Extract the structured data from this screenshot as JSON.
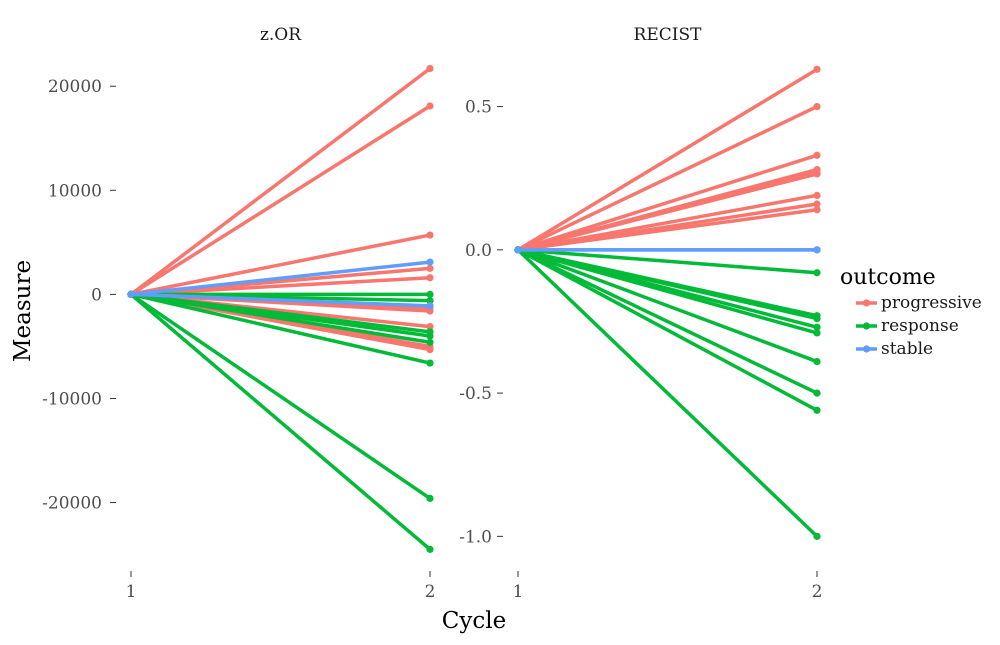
{
  "chart_data": {
    "type": "line",
    "xlabel": "Cycle",
    "ylabel": "Measure",
    "x_categories": [
      "1",
      "2"
    ],
    "legend": {
      "title": "outcome",
      "position": "right",
      "entries": [
        {
          "name": "progressive",
          "color": "#F8766D"
        },
        {
          "name": "response",
          "color": "#00BA38"
        },
        {
          "name": "stable",
          "color": "#619CFF"
        }
      ]
    },
    "panels": [
      {
        "title": "z.OR",
        "ylim": [
          -26000,
          23000
        ],
        "yticks": [
          20000,
          10000,
          0,
          -10000,
          -20000
        ],
        "ytick_labels": [
          "20000",
          "10000",
          "0",
          "-10000",
          "-20000"
        ],
        "series": [
          {
            "outcome": "progressive",
            "values": [
              0,
              21700
            ]
          },
          {
            "outcome": "progressive",
            "values": [
              0,
              18100
            ]
          },
          {
            "outcome": "progressive",
            "values": [
              0,
              5700
            ]
          },
          {
            "outcome": "progressive",
            "values": [
              0,
              2500
            ]
          },
          {
            "outcome": "progressive",
            "values": [
              0,
              1600
            ]
          },
          {
            "outcome": "progressive",
            "values": [
              0,
              -1300
            ]
          },
          {
            "outcome": "progressive",
            "values": [
              0,
              -1600
            ]
          },
          {
            "outcome": "progressive",
            "values": [
              0,
              -3100
            ]
          },
          {
            "outcome": "progressive",
            "values": [
              0,
              -5000
            ]
          },
          {
            "outcome": "progressive",
            "values": [
              0,
              -5300
            ]
          },
          {
            "outcome": "stable",
            "values": [
              0,
              3100
            ]
          },
          {
            "outcome": "stable",
            "values": [
              0,
              -1100
            ]
          },
          {
            "outcome": "response",
            "values": [
              0,
              0
            ]
          },
          {
            "outcome": "response",
            "values": [
              0,
              -600
            ]
          },
          {
            "outcome": "response",
            "values": [
              0,
              -3600
            ]
          },
          {
            "outcome": "response",
            "values": [
              0,
              -4000
            ]
          },
          {
            "outcome": "response",
            "values": [
              0,
              -4600
            ]
          },
          {
            "outcome": "response",
            "values": [
              0,
              -6600
            ]
          },
          {
            "outcome": "response",
            "values": [
              0,
              -19600
            ]
          },
          {
            "outcome": "response",
            "values": [
              0,
              -24500
            ]
          }
        ]
      },
      {
        "title": "RECIST",
        "ylim": [
          -1.1,
          0.68
        ],
        "yticks": [
          0.5,
          0.0,
          -0.5,
          -1.0
        ],
        "ytick_labels": [
          "0.5",
          "0.0",
          "-0.5",
          "-1.0"
        ],
        "series": [
          {
            "outcome": "progressive",
            "values": [
              0,
              0.63
            ]
          },
          {
            "outcome": "progressive",
            "values": [
              0,
              0.5
            ]
          },
          {
            "outcome": "progressive",
            "values": [
              0,
              0.33
            ]
          },
          {
            "outcome": "progressive",
            "values": [
              0,
              0.28
            ]
          },
          {
            "outcome": "progressive",
            "values": [
              0,
              0.27
            ]
          },
          {
            "outcome": "progressive",
            "values": [
              0,
              0.265
            ]
          },
          {
            "outcome": "progressive",
            "values": [
              0,
              0.19
            ]
          },
          {
            "outcome": "progressive",
            "values": [
              0,
              0.16
            ]
          },
          {
            "outcome": "progressive",
            "values": [
              0,
              0.14
            ]
          },
          {
            "outcome": "stable",
            "values": [
              0,
              0.0
            ]
          },
          {
            "outcome": "stable",
            "values": [
              0,
              0.0
            ]
          },
          {
            "outcome": "response",
            "values": [
              0,
              -0.08
            ]
          },
          {
            "outcome": "response",
            "values": [
              0,
              -0.23
            ]
          },
          {
            "outcome": "response",
            "values": [
              0,
              -0.24
            ]
          },
          {
            "outcome": "response",
            "values": [
              0,
              -0.27
            ]
          },
          {
            "outcome": "response",
            "values": [
              0,
              -0.29
            ]
          },
          {
            "outcome": "response",
            "values": [
              0,
              -0.39
            ]
          },
          {
            "outcome": "response",
            "values": [
              0,
              -0.5
            ]
          },
          {
            "outcome": "response",
            "values": [
              0,
              -0.56
            ]
          },
          {
            "outcome": "response",
            "values": [
              0,
              -1.0
            ]
          }
        ]
      }
    ]
  }
}
